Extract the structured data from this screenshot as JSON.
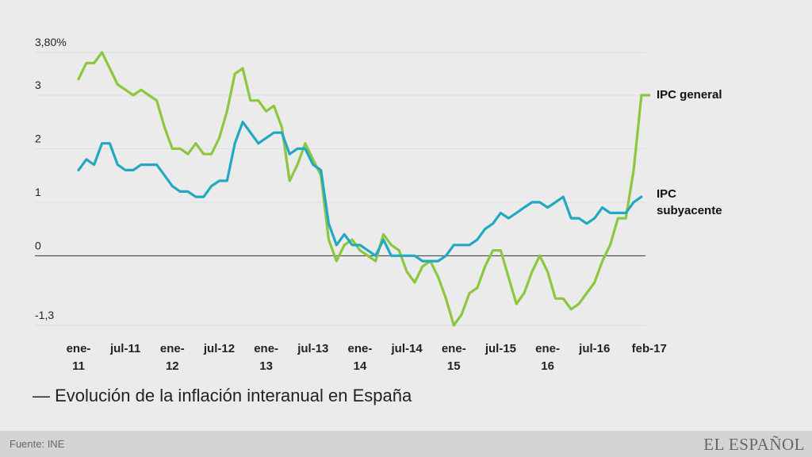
{
  "chart_data": {
    "type": "line",
    "title": "— Evolución de la inflación interanual en España",
    "source": "Fuente: INE",
    "brand": "EL ESPAÑOL",
    "y_ticks": [
      {
        "value": 3.8,
        "label": "3,80%"
      },
      {
        "value": 3,
        "label": "3"
      },
      {
        "value": 2,
        "label": "2"
      },
      {
        "value": 1,
        "label": "1"
      },
      {
        "value": 0,
        "label": "0"
      },
      {
        "value": -1.3,
        "label": "-1,3"
      }
    ],
    "ylim": [
      -1.3,
      3.8
    ],
    "x_ticks": [
      {
        "index": 0,
        "line1": "ene-",
        "line2": "11"
      },
      {
        "index": 6,
        "line1": "jul-11",
        "line2": ""
      },
      {
        "index": 12,
        "line1": "ene-",
        "line2": "12"
      },
      {
        "index": 18,
        "line1": "jul-12",
        "line2": ""
      },
      {
        "index": 24,
        "line1": "ene-",
        "line2": "13"
      },
      {
        "index": 30,
        "line1": "jul-13",
        "line2": ""
      },
      {
        "index": 36,
        "line1": "ene-",
        "line2": "14"
      },
      {
        "index": 42,
        "line1": "jul-14",
        "line2": ""
      },
      {
        "index": 48,
        "line1": "ene-",
        "line2": "15"
      },
      {
        "index": 54,
        "line1": "jul-15",
        "line2": ""
      },
      {
        "index": 60,
        "line1": "ene-",
        "line2": "16"
      },
      {
        "index": 66,
        "line1": "jul-16",
        "line2": ""
      },
      {
        "index": 73,
        "line1": "feb-17",
        "line2": ""
      }
    ],
    "series": [
      {
        "name": "IPC general",
        "name_lines": [
          "IPC general"
        ],
        "color": "#8dc63f",
        "values": [
          3.3,
          3.6,
          3.6,
          3.8,
          3.5,
          3.2,
          3.1,
          3.0,
          3.1,
          3.0,
          2.9,
          2.4,
          2.0,
          2.0,
          1.9,
          2.1,
          1.9,
          1.9,
          2.2,
          2.7,
          3.4,
          3.5,
          2.9,
          2.9,
          2.7,
          2.8,
          2.4,
          1.4,
          1.7,
          2.1,
          1.8,
          1.5,
          0.3,
          -0.1,
          0.2,
          0.3,
          0.1,
          0.0,
          -0.1,
          0.4,
          0.2,
          0.1,
          -0.3,
          -0.5,
          -0.2,
          -0.1,
          -0.4,
          -0.8,
          -1.3,
          -1.1,
          -0.7,
          -0.6,
          -0.2,
          0.1,
          0.1,
          -0.4,
          -0.9,
          -0.7,
          -0.3,
          0.0,
          -0.3,
          -0.8,
          -0.8,
          -1.0,
          -0.9,
          -0.7,
          -0.5,
          -0.1,
          0.2,
          0.7,
          0.7,
          1.6,
          3.0,
          3.0
        ]
      },
      {
        "name": "IPC subyacente",
        "name_lines": [
          "IPC",
          "subyacente"
        ],
        "color": "#22a9c1",
        "values": [
          1.6,
          1.8,
          1.7,
          2.1,
          2.1,
          1.7,
          1.6,
          1.6,
          1.7,
          1.7,
          1.7,
          1.5,
          1.3,
          1.2,
          1.2,
          1.1,
          1.1,
          1.3,
          1.4,
          1.4,
          2.1,
          2.5,
          2.3,
          2.1,
          2.2,
          2.3,
          2.3,
          1.9,
          2.0,
          2.0,
          1.7,
          1.6,
          0.6,
          0.2,
          0.4,
          0.2,
          0.2,
          0.1,
          0.0,
          0.3,
          0.0,
          0.0,
          0.0,
          0.0,
          -0.1,
          -0.1,
          -0.1,
          0.0,
          0.2,
          0.2,
          0.2,
          0.3,
          0.5,
          0.6,
          0.8,
          0.7,
          0.8,
          0.9,
          1.0,
          1.0,
          0.9,
          1.0,
          1.1,
          0.7,
          0.7,
          0.6,
          0.7,
          0.9,
          0.8,
          0.8,
          0.8,
          1.0,
          1.1
        ]
      }
    ]
  }
}
